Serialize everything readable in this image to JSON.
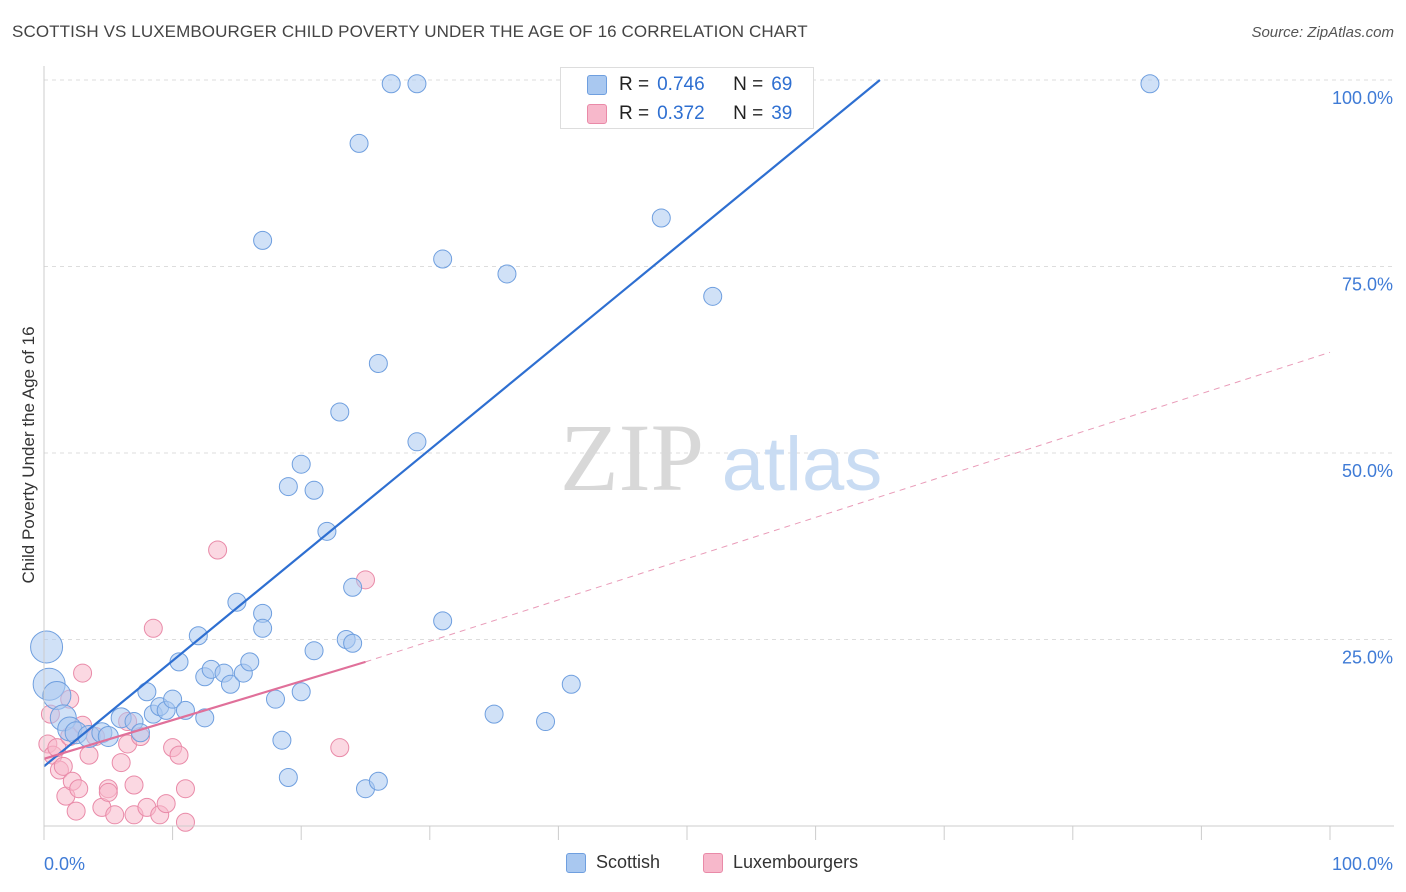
{
  "header": {
    "title": "SCOTTISH VS LUXEMBOURGER CHILD POVERTY UNDER THE AGE OF 16 CORRELATION CHART",
    "source": "Source: ZipAtlas.com"
  },
  "watermark": {
    "zip": "ZIP",
    "atlas": "atlas"
  },
  "stats": [
    {
      "series": "Scottish",
      "r_label": "R =",
      "r_value": "0.746",
      "n_label": "N =",
      "n_value": "69"
    },
    {
      "series": "Luxembourgers",
      "r_label": "R =",
      "r_value": "0.372",
      "n_label": "N =",
      "n_value": "39"
    }
  ],
  "colors": {
    "scottish_fill": "#a9c8f0",
    "scottish_stroke": "#6f9fdf",
    "scottish_line": "#2e6fd1",
    "lux_fill": "#f7b8cb",
    "lux_stroke": "#e98aa8",
    "lux_line": "#e0709a",
    "axis_text": "#3f7bd6",
    "grid": "#dddddd"
  },
  "chart_data": {
    "type": "scatter",
    "title": "SCOTTISH VS LUXEMBOURGER CHILD POVERTY UNDER THE AGE OF 16 CORRELATION CHART",
    "ylabel": "Child Poverty Under the Age of 16",
    "xlabel": "",
    "xlim": [
      0,
      100
    ],
    "ylim": [
      0,
      100
    ],
    "x_tick_labels": [
      "0.0%",
      "100.0%"
    ],
    "y_ticks": [
      25,
      50,
      75,
      100
    ],
    "y_tick_labels": [
      "25.0%",
      "50.0%",
      "75.0%",
      "100.0%"
    ],
    "grid": true,
    "legend_position": "bottom",
    "series": [
      {
        "name": "Scottish",
        "trend": {
          "x": [
            0,
            65
          ],
          "y": [
            8,
            100
          ]
        },
        "points": [
          [
            0.2,
            24,
            16
          ],
          [
            0.4,
            19,
            16
          ],
          [
            1,
            17.5,
            14
          ],
          [
            1.5,
            14.5,
            13
          ],
          [
            2,
            13,
            12
          ],
          [
            2.5,
            12.5,
            11
          ],
          [
            3.5,
            12,
            11
          ],
          [
            4.5,
            12.5,
            10
          ],
          [
            5,
            12,
            10
          ],
          [
            6,
            14.5,
            10
          ],
          [
            7,
            14,
            9
          ],
          [
            7.5,
            12.5,
            9
          ],
          [
            8,
            18,
            9
          ],
          [
            8.5,
            15,
            9
          ],
          [
            9,
            16,
            9
          ],
          [
            9.5,
            15.5,
            9
          ],
          [
            10,
            17,
            9
          ],
          [
            10.5,
            22,
            9
          ],
          [
            11,
            15.5,
            9
          ],
          [
            12,
            25.5,
            9
          ],
          [
            12.5,
            20,
            9
          ],
          [
            12.5,
            14.5,
            9
          ],
          [
            13,
            21,
            9
          ],
          [
            14,
            20.5,
            9
          ],
          [
            14.5,
            19,
            9
          ],
          [
            15,
            30,
            9
          ],
          [
            15.5,
            20.5,
            9
          ],
          [
            16,
            22,
            9
          ],
          [
            17,
            28.5,
            9
          ],
          [
            17,
            26.5,
            9
          ],
          [
            17,
            78.5,
            9
          ],
          [
            18,
            17,
            9
          ],
          [
            18.5,
            11.5,
            9
          ],
          [
            19,
            45.5,
            9
          ],
          [
            19,
            6.5,
            9
          ],
          [
            20,
            48.5,
            9
          ],
          [
            20,
            18,
            9
          ],
          [
            21,
            45,
            9
          ],
          [
            21,
            23.5,
            9
          ],
          [
            22,
            39.5,
            9
          ],
          [
            23,
            55.5,
            9
          ],
          [
            23.5,
            25,
            9
          ],
          [
            24,
            24.5,
            9
          ],
          [
            24,
            32,
            9
          ],
          [
            24.5,
            91.5,
            9
          ],
          [
            25,
            5,
            9
          ],
          [
            26,
            62,
            9
          ],
          [
            26,
            6,
            9
          ],
          [
            27,
            99.5,
            9
          ],
          [
            29,
            99.5,
            9
          ],
          [
            29,
            51.5,
            9
          ],
          [
            31,
            76,
            9
          ],
          [
            31,
            27.5,
            9
          ],
          [
            35,
            15,
            9
          ],
          [
            36,
            74,
            9
          ],
          [
            39,
            14,
            9
          ],
          [
            41,
            19,
            9
          ],
          [
            43,
            99.5,
            9
          ],
          [
            48,
            99.5,
            9
          ],
          [
            48,
            81.5,
            9
          ],
          [
            52,
            71,
            9
          ],
          [
            54,
            99.5,
            9
          ],
          [
            57,
            99.5,
            9
          ],
          [
            86,
            99.5,
            9
          ]
        ]
      },
      {
        "name": "Luxembourgers",
        "trend": {
          "x": [
            0,
            25
          ],
          "y": [
            9,
            22
          ]
        },
        "trend_ext": {
          "x": [
            25,
            100
          ],
          "y": [
            22,
            63.5
          ]
        },
        "points": [
          [
            0.3,
            11,
            9
          ],
          [
            0.5,
            15,
            9
          ],
          [
            0.7,
            9.5,
            9
          ],
          [
            1,
            10.5,
            9
          ],
          [
            1.2,
            7.5,
            9
          ],
          [
            1.5,
            8,
            9
          ],
          [
            1.7,
            4,
            9
          ],
          [
            2,
            17,
            9
          ],
          [
            2,
            12,
            9
          ],
          [
            2.2,
            6,
            9
          ],
          [
            2.5,
            2,
            9
          ],
          [
            2.7,
            5,
            9
          ],
          [
            3,
            13.5,
            9
          ],
          [
            3,
            20.5,
            9
          ],
          [
            3.5,
            9.5,
            9
          ],
          [
            4,
            12,
            9
          ],
          [
            4.5,
            2.5,
            9
          ],
          [
            5,
            5,
            9
          ],
          [
            5,
            4.5,
            9
          ],
          [
            5.5,
            1.5,
            9
          ],
          [
            6,
            8.5,
            9
          ],
          [
            6.5,
            11,
            9
          ],
          [
            6.5,
            14,
            9
          ],
          [
            7,
            5.5,
            9
          ],
          [
            7,
            1.5,
            9
          ],
          [
            7.5,
            12,
            9
          ],
          [
            8,
            2.5,
            9
          ],
          [
            8.5,
            26.5,
            9
          ],
          [
            9,
            1.5,
            9
          ],
          [
            9.5,
            3,
            9
          ],
          [
            10,
            10.5,
            9
          ],
          [
            10.5,
            9.5,
            9
          ],
          [
            11,
            5,
            9
          ],
          [
            11,
            0.5,
            9
          ],
          [
            13.5,
            37,
            9
          ],
          [
            23,
            10.5,
            9
          ],
          [
            25,
            33,
            9
          ]
        ]
      }
    ]
  },
  "legend": [
    {
      "label": "Scottish"
    },
    {
      "label": "Luxembourgers"
    }
  ]
}
